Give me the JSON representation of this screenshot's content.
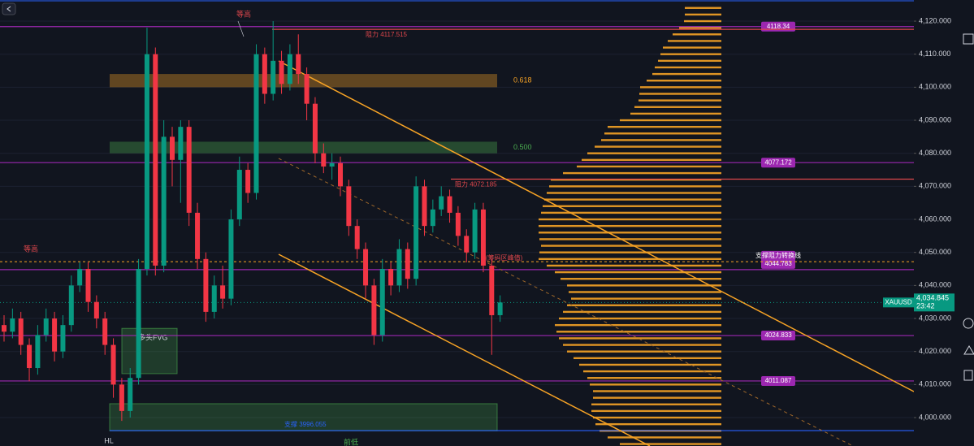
{
  "chart_data": {
    "type": "candlestick",
    "ylim": [
      3991.4,
      4126.4
    ],
    "yticks": [
      {
        "value": 4000,
        "label": "4,000.000"
      },
      {
        "value": 4010,
        "label": "4,010.000"
      },
      {
        "value": 4020,
        "label": "4,020.000"
      },
      {
        "value": 4030,
        "label": "4,030.000"
      },
      {
        "value": 4040,
        "label": "4,040.000"
      },
      {
        "value": 4050,
        "label": "4,050.000"
      },
      {
        "value": 4060,
        "label": "4,060.000"
      },
      {
        "value": 4070,
        "label": "4,070.000"
      },
      {
        "value": 4080,
        "label": "4,080.000"
      },
      {
        "value": 4090,
        "label": "4,090.000"
      },
      {
        "value": 4100,
        "label": "4,100.000"
      },
      {
        "value": 4110,
        "label": "4,110.000"
      },
      {
        "value": 4120,
        "label": "4,120.000"
      }
    ],
    "grid": true,
    "up_color": "#089981",
    "down_color": "#f23645",
    "open": [
      4028,
      4026,
      4030,
      4022,
      4015,
      4025,
      4030,
      4020,
      4028,
      4040,
      4045,
      4035,
      4030,
      4022,
      4010,
      4002,
      4012,
      4045,
      4110,
      4046,
      4085,
      4078,
      4088,
      4062,
      4048,
      4032,
      4040,
      4036,
      4060,
      4075,
      4068,
      4110,
      4098,
      4108,
      4101,
      4110,
      4104,
      4095,
      4080,
      4076,
      4077,
      4070,
      4058,
      4051,
      4040,
      4025,
      4045,
      4040,
      4051,
      4042,
      4070,
      4058,
      4063,
      4067,
      4062,
      4055,
      4050,
      4063,
      4046,
      4031
    ],
    "high": [
      4031,
      4033,
      4032,
      4024,
      4028,
      4033,
      4032,
      4031,
      4043,
      4047,
      4047,
      4037,
      4032,
      4024,
      4012,
      4015,
      4048,
      4118,
      4112,
      4090,
      4088,
      4090,
      4090,
      4065,
      4050,
      4043,
      4046,
      4063,
      4079,
      4077,
      4113,
      4112,
      4120,
      4111,
      4113,
      4116,
      4106,
      4097,
      4083,
      4080,
      4079,
      4072,
      4060,
      4053,
      4042,
      4048,
      4047,
      4054,
      4053,
      4073,
      4072,
      4066,
      4070,
      4069,
      4064,
      4057,
      4065,
      4065,
      4048,
      4037
    ],
    "low": [
      4023,
      4024,
      4019,
      4011,
      4013,
      4023,
      4017,
      4018,
      4026,
      4038,
      4032,
      4027,
      4019,
      4006,
      3999,
      4000,
      4010,
      4043,
      4043,
      4044,
      4070,
      4065,
      4058,
      4045,
      4029,
      4030,
      4033,
      4034,
      4058,
      4065,
      4066,
      4095,
      4096,
      4098,
      4099,
      4101,
      4090,
      4077,
      4074,
      4072,
      4067,
      4055,
      4048,
      4036,
      4022,
      4023,
      4037,
      4038,
      4039,
      4040,
      4055,
      4056,
      4061,
      4059,
      4052,
      4047,
      4048,
      4044,
      4019,
      4029
    ],
    "close": [
      4026,
      4030,
      4022,
      4015,
      4025,
      4030,
      4020,
      4028,
      4040,
      4045,
      4035,
      4030,
      4022,
      4010,
      4002,
      4012,
      4045,
      4110,
      4046,
      4085,
      4078,
      4088,
      4062,
      4048,
      4032,
      4040,
      4036,
      4060,
      4075,
      4068,
      4110,
      4098,
      4108,
      4101,
      4110,
      4104,
      4095,
      4080,
      4076,
      4077,
      4070,
      4058,
      4051,
      4040,
      4025,
      4045,
      4040,
      4051,
      4042,
      4070,
      4058,
      4063,
      4067,
      4062,
      4055,
      4050,
      4063,
      4046,
      4031,
      4034.845
    ],
    "levels": [
      {
        "value": 4118.34,
        "label": "4118.34",
        "color": "#9c27b0",
        "kind": "box"
      },
      {
        "value": 4117.515,
        "label": "阻力 4117.515",
        "color": "#e0474c",
        "kind": "text"
      },
      {
        "value": 4077.172,
        "label": "4077.172",
        "color": "#9c27b0",
        "kind": "box"
      },
      {
        "value": 4072.185,
        "label": "阻力 4072.185",
        "color": "#e0474c",
        "kind": "text"
      },
      {
        "value": 4044.783,
        "title": "支撑阻力转换线",
        "label": "4044.783",
        "color": "#9c27b0",
        "kind": "box"
      },
      {
        "value": 4024.833,
        "label": "4024.833",
        "color": "#9c27b0",
        "kind": "box"
      },
      {
        "value": 4011.087,
        "label": "4011.087",
        "color": "#9c27b0",
        "kind": "box"
      },
      {
        "value": 3996.055,
        "label": "支撑 3996.055",
        "color": "#2962ff",
        "kind": "text"
      },
      {
        "value": 4047.2,
        "color": "#f7a325",
        "kind": "dashed"
      }
    ],
    "fib_zones": [
      {
        "label": "0.618",
        "low": 4100,
        "high": 4104,
        "color": "#f7a325"
      },
      {
        "label": "0.500",
        "low": 4080,
        "high": 4083.5,
        "color": "#4caf50"
      }
    ],
    "zones": [
      {
        "label": "多头FVG",
        "low": 4013.3,
        "high": 4027,
        "color": "#4caf50"
      },
      {
        "low": 3996,
        "high": 4004.2,
        "color": "#4caf50"
      }
    ],
    "annotations": [
      "等高",
      "等高",
      "HL",
      "前低",
      "(筹码区峰值)"
    ],
    "current": {
      "name": "XAUUSD",
      "value": 4034.845,
      "label": "4,034.845",
      "time": "23:42",
      "color": "#089981"
    },
    "volume_profile": {
      "color": "#f7a325",
      "prices": [
        3992,
        3994,
        3996,
        3998,
        4000,
        4002,
        4004,
        4006,
        4008,
        4010,
        4012,
        4014,
        4016,
        4018,
        4020,
        4022,
        4024,
        4026,
        4028,
        4030,
        4032,
        4034,
        4036,
        4038,
        4040,
        4042,
        4044,
        4046,
        4048,
        4050,
        4052,
        4054,
        4056,
        4058,
        4060,
        4062,
        4064,
        4066,
        4068,
        4070,
        4072,
        4074,
        4076,
        4078,
        4080,
        4082,
        4084,
        4086,
        4088,
        4090,
        4092,
        4094,
        4096,
        4098,
        4100,
        4102,
        4104,
        4106,
        4108,
        4110,
        4112,
        4114,
        4116,
        4118,
        4120,
        4122,
        4124
      ],
      "values": [
        125,
        140,
        150,
        155,
        158,
        160,
        160,
        158,
        158,
        162,
        165,
        170,
        175,
        182,
        190,
        195,
        200,
        203,
        205,
        200,
        195,
        190,
        185,
        188,
        190,
        198,
        205,
        215,
        225,
        224,
        222,
        224,
        225,
        225,
        225,
        222,
        220,
        218,
        215,
        212,
        210,
        195,
        178,
        172,
        165,
        156,
        148,
        144,
        140,
        125,
        112,
        107,
        102,
        101,
        100,
        92,
        85,
        82,
        78,
        75,
        72,
        66,
        60,
        52,
        46,
        45,
        45
      ]
    }
  }
}
